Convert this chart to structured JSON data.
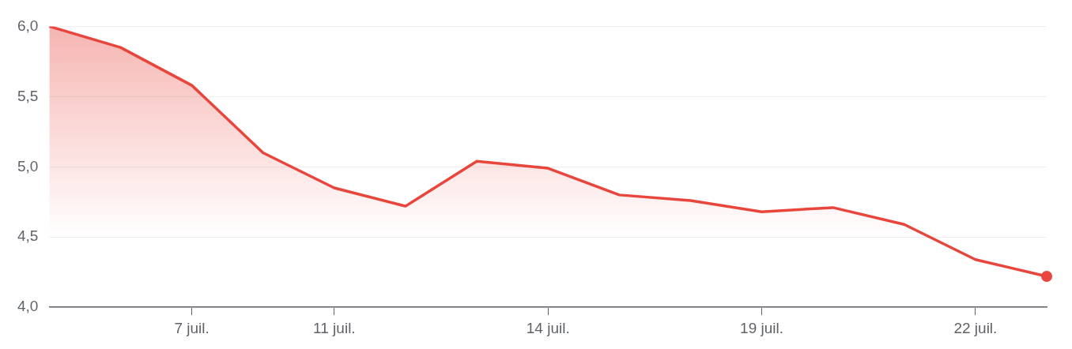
{
  "chart_data": {
    "type": "area",
    "categories": [
      null,
      null,
      "7 juil.",
      null,
      "11 juil.",
      null,
      null,
      "14 juil.",
      null,
      null,
      "19 juil.",
      null,
      null,
      "22 juil.",
      null
    ],
    "series": [
      {
        "color": "#e8453c",
        "values": [
          6.0,
          5.85,
          5.58,
          5.1,
          4.85,
          4.72,
          5.04,
          4.99,
          4.8,
          4.76,
          4.68,
          4.71,
          4.59,
          4.34,
          4.22
        ]
      }
    ],
    "ylim": [
      4,
      6
    ],
    "yticks": [
      {
        "value": 4,
        "label": "4,0"
      },
      {
        "value": 4.5,
        "label": "4,5"
      },
      {
        "value": 5,
        "label": "5,0"
      },
      {
        "value": 5.5,
        "label": "5,5"
      },
      {
        "value": 6,
        "label": "6,0"
      }
    ],
    "grid": "y",
    "legend": false
  }
}
